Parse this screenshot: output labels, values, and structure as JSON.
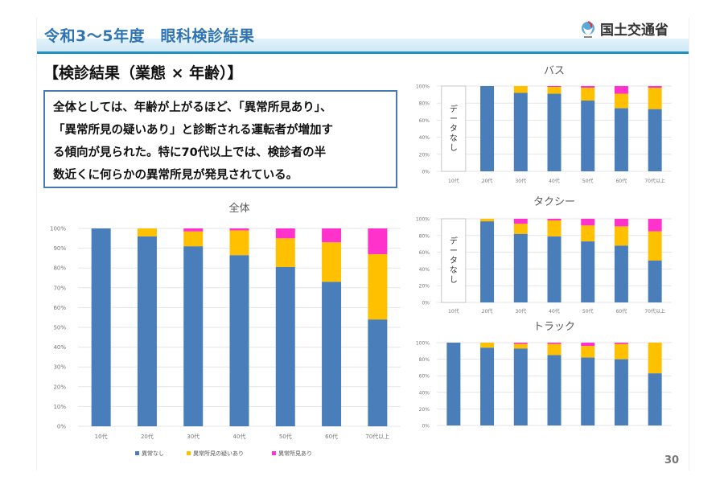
{
  "header": {
    "title": "令和3～5年度　眼科検診結果",
    "ministry": "国土交通省",
    "ministry_logo": "mlit-logo-icon"
  },
  "subtitle": "【検診結果（業態 × 年齢）】",
  "summary_lines": [
    "全体としては、年齢が上がるほど、「異常所見あり」、",
    "「異常所見の疑いあり」と診断される運転者が増加す",
    "る傾向が見られた。特に70代以上では、検診者の半",
    "数近くに何らかの異常所見が発見されている。"
  ],
  "page_number": "30",
  "colors": {
    "normal": "#4a7ebb",
    "suspected": "#ffc000",
    "abnormal": "#ff33cc",
    "grid": "#e6e6e6",
    "title_blue": "#2e74b5"
  },
  "chart_data": [
    {
      "id": "overall",
      "type": "bar",
      "stacked": true,
      "title": "全体",
      "categories": [
        "10代",
        "20代",
        "30代",
        "40代",
        "50代",
        "60代",
        "70代以上"
      ],
      "series": [
        {
          "name": "異常なし",
          "values": [
            100,
            96,
            91,
            86.5,
            80.5,
            73,
            54
          ]
        },
        {
          "name": "異常所見の疑いあり",
          "values": [
            0,
            4,
            7.5,
            12.5,
            14.5,
            20,
            33
          ]
        },
        {
          "name": "異常所見あり",
          "values": [
            0,
            0,
            1.5,
            1,
            5,
            7,
            13
          ]
        }
      ],
      "ylim": [
        0,
        100
      ],
      "yticks": [
        "0%",
        "10%",
        "20%",
        "30%",
        "40%",
        "50%",
        "60%",
        "70%",
        "80%",
        "90%",
        "100%"
      ],
      "grid": true,
      "legend": "bottom",
      "legend_labels": [
        "異常なし",
        "異常所見の疑いあり",
        "異常所見あり"
      ]
    },
    {
      "id": "bus",
      "type": "bar",
      "stacked": true,
      "title": "バス",
      "categories": [
        "10代",
        "20代",
        "30代",
        "40代",
        "50代",
        "60代",
        "70代以上"
      ],
      "series": [
        {
          "name": "異常なし",
          "values": [
            null,
            100,
            92,
            91,
            83,
            74,
            73
          ]
        },
        {
          "name": "異常所見の疑いあり",
          "values": [
            null,
            0,
            8,
            8,
            15,
            17,
            25
          ]
        },
        {
          "name": "異常所見あり",
          "values": [
            null,
            0,
            0,
            1,
            2,
            9,
            2
          ]
        }
      ],
      "no_data_label": "データなし",
      "ylim": [
        0,
        100
      ],
      "yticks": [
        "0%",
        "20%",
        "40%",
        "60%",
        "80%",
        "100%"
      ],
      "grid": true
    },
    {
      "id": "taxi",
      "type": "bar",
      "stacked": true,
      "title": "タクシー",
      "categories": [
        "10代",
        "20代",
        "30代",
        "40代",
        "50代",
        "60代",
        "70代以上"
      ],
      "series": [
        {
          "name": "異常なし",
          "values": [
            null,
            97,
            82,
            79,
            73,
            68,
            50
          ]
        },
        {
          "name": "異常所見の疑いあり",
          "values": [
            null,
            3,
            12,
            19,
            19,
            23,
            35
          ]
        },
        {
          "name": "異常所見あり",
          "values": [
            null,
            0,
            6,
            2,
            8,
            9,
            15
          ]
        }
      ],
      "no_data_label": "データなし",
      "ylim": [
        0,
        100
      ],
      "yticks": [
        "0%",
        "20%",
        "40%",
        "60%",
        "80%",
        "100%"
      ],
      "grid": true
    },
    {
      "id": "truck",
      "type": "bar",
      "stacked": true,
      "title": "トラック",
      "categories": [
        "10代",
        "20代",
        "30代",
        "40代",
        "50代",
        "60代",
        "70代以上"
      ],
      "series": [
        {
          "name": "異常なし",
          "values": [
            100,
            94,
            93,
            85,
            82,
            80,
            63
          ]
        },
        {
          "name": "異常所見の疑いあり",
          "values": [
            0,
            6,
            5.5,
            13.5,
            14,
            18.5,
            37
          ]
        },
        {
          "name": "異常所見あり",
          "values": [
            0,
            0,
            1.5,
            1.5,
            4,
            1.5,
            0
          ]
        }
      ],
      "ylim": [
        0,
        100
      ],
      "yticks": [
        "0%",
        "20%",
        "40%",
        "60%",
        "80%",
        "100%"
      ],
      "grid": true
    }
  ]
}
